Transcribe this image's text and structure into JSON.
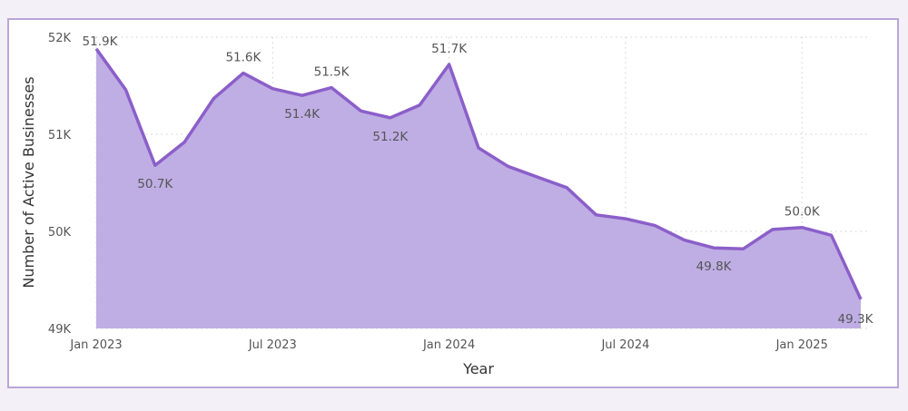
{
  "chart_data": {
    "type": "area",
    "xlabel": "Year",
    "ylabel": "Number of Active Businesses",
    "ylim": [
      49000,
      52000
    ],
    "y_ticks": [
      {
        "value": 49000,
        "label": "49K"
      },
      {
        "value": 50000,
        "label": "50K"
      },
      {
        "value": 51000,
        "label": "51K"
      },
      {
        "value": 52000,
        "label": "52K"
      }
    ],
    "x_ticks": [
      {
        "index": 0,
        "label": "Jan 2023"
      },
      {
        "index": 6,
        "label": "Jul 2023"
      },
      {
        "index": 12,
        "label": "Jan 2024"
      },
      {
        "index": 18,
        "label": "Jul 2024"
      },
      {
        "index": 24,
        "label": "Jan 2025"
      }
    ],
    "x": [
      "2023-01",
      "2023-02",
      "2023-03",
      "2023-04",
      "2023-05",
      "2023-06",
      "2023-07",
      "2023-08",
      "2023-09",
      "2023-10",
      "2023-11",
      "2023-12",
      "2024-01",
      "2024-02",
      "2024-03",
      "2024-04",
      "2024-05",
      "2024-06",
      "2024-07",
      "2024-08",
      "2024-09",
      "2024-10",
      "2024-11",
      "2024-12",
      "2025-01",
      "2025-02",
      "2025-03"
    ],
    "series": [
      {
        "values": [
          51880,
          51460,
          50680,
          50920,
          51370,
          51630,
          51470,
          51400,
          51480,
          51240,
          51170,
          51300,
          51720,
          50860,
          50670,
          50560,
          50450,
          50170,
          50130,
          50060,
          49910,
          49830,
          49820,
          50020,
          50040,
          49960,
          49300
        ],
        "color": "#8b5fc9",
        "fill": "#bfaee4"
      }
    ],
    "data_labels": [
      {
        "index": 0,
        "label": "51.9K",
        "pos": "above"
      },
      {
        "index": 2,
        "label": "50.7K",
        "pos": "below"
      },
      {
        "index": 5,
        "label": "51.6K",
        "pos": "above"
      },
      {
        "index": 7,
        "label": "51.4K",
        "pos": "below"
      },
      {
        "index": 8,
        "label": "51.5K",
        "pos": "above"
      },
      {
        "index": 10,
        "label": "51.2K",
        "pos": "below"
      },
      {
        "index": 12,
        "label": "51.7K",
        "pos": "above"
      },
      {
        "index": 21,
        "label": "49.8K",
        "pos": "below"
      },
      {
        "index": 24,
        "label": "50.0K",
        "pos": "above"
      },
      {
        "index": 26,
        "label": "49.3K",
        "pos": "below"
      }
    ],
    "grid": true
  }
}
